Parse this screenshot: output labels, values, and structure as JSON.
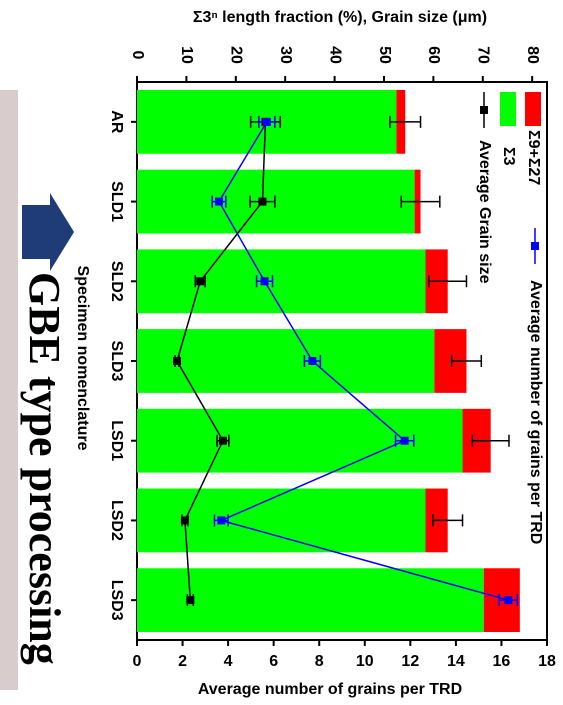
{
  "chart_data": {
    "type": "bar",
    "title": "Σ3ⁿ length fraction (%), Grain size (μm)",
    "y2_label": "Average number of grains per TRD",
    "x_label": "Specimen nomenclature",
    "banner": "GBE type processing",
    "categories": [
      "AR",
      "SLD1",
      "SLD2",
      "SLD3",
      "LSD1",
      "LSD2",
      "LSD3"
    ],
    "ylim": [
      0,
      83
    ],
    "yticks": [
      0,
      10,
      20,
      30,
      40,
      50,
      60,
      70,
      80
    ],
    "y2lim": [
      0,
      18
    ],
    "y2ticks": [
      0,
      2,
      4,
      6,
      8,
      10,
      12,
      14,
      16,
      18
    ],
    "series": [
      {
        "name": "Σ3",
        "type": "bar",
        "color": "#00ff00",
        "values": [
          52.5,
          56.2,
          58.4,
          60.2,
          65.9,
          58.4,
          70.2
        ]
      },
      {
        "name": "Σ9+Σ27",
        "type": "bar",
        "color": "#ff0000",
        "values": [
          1.8,
          1.2,
          4.5,
          6.5,
          5.7,
          4.5,
          7.3
        ],
        "errors": [
          3.1,
          3.9,
          3.8,
          3.0,
          3.7,
          3.0,
          null
        ]
      },
      {
        "name": "Average Grain size",
        "type": "line",
        "color": "#000000",
        "values": [
          26,
          25.4,
          12.8,
          8.1,
          17.4,
          9.7,
          10.8
        ],
        "errors": [
          3,
          2.5,
          1,
          0.4,
          1.2,
          0.6,
          0.6
        ]
      },
      {
        "name": "Average number of grains per TRD",
        "type": "line",
        "axis": "y2",
        "color": "#0000ff",
        "values": [
          5.7,
          3.6,
          5.6,
          7.7,
          11.75,
          3.7,
          16.3
        ],
        "errors": [
          0.35,
          0.3,
          0.35,
          0.35,
          0.4,
          0.3,
          0.4
        ]
      }
    ]
  }
}
